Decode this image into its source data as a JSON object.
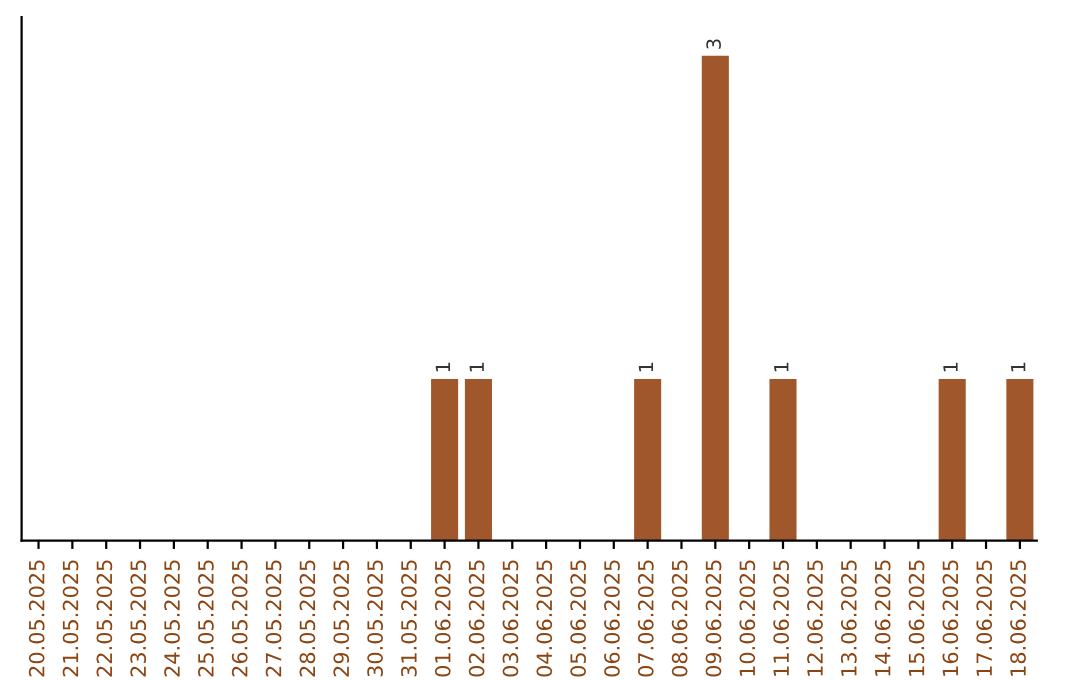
{
  "chart_data": {
    "type": "bar",
    "categories": [
      "20.05.2025",
      "21.05.2025",
      "22.05.2025",
      "23.05.2025",
      "24.05.2025",
      "25.05.2025",
      "26.05.2025",
      "27.05.2025",
      "28.05.2025",
      "29.05.2025",
      "30.05.2025",
      "31.05.2025",
      "01.06.2025",
      "02.06.2025",
      "03.06.2025",
      "04.06.2025",
      "05.06.2025",
      "06.06.2025",
      "07.06.2025",
      "08.06.2025",
      "09.06.2025",
      "10.06.2025",
      "11.06.2025",
      "12.06.2025",
      "13.06.2025",
      "14.06.2025",
      "15.06.2025",
      "16.06.2025",
      "17.06.2025",
      "18.06.2025"
    ],
    "values": [
      null,
      null,
      null,
      null,
      null,
      null,
      null,
      null,
      null,
      null,
      null,
      null,
      1,
      1,
      null,
      null,
      null,
      null,
      1,
      null,
      3,
      null,
      1,
      null,
      null,
      null,
      null,
      1,
      null,
      1
    ],
    "value_labels": [
      null,
      null,
      null,
      null,
      null,
      null,
      null,
      null,
      null,
      null,
      null,
      null,
      "1",
      "1",
      null,
      null,
      null,
      null,
      "1",
      null,
      "3",
      null,
      "1",
      null,
      null,
      null,
      null,
      "1",
      null,
      "1"
    ],
    "color": "#a0572b",
    "tick_labels": "x",
    "grid": false,
    "legend": false
  }
}
